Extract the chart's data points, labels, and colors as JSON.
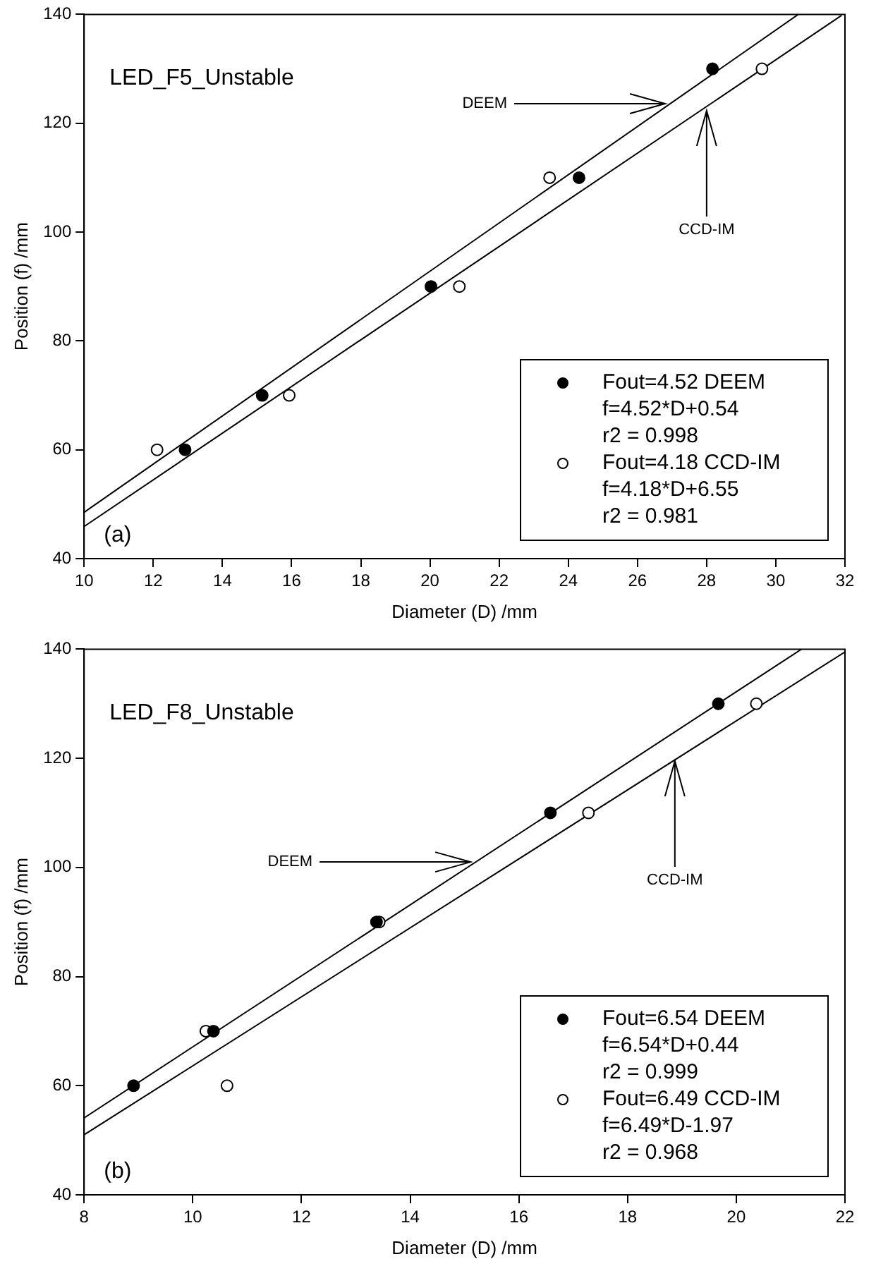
{
  "chart_data": [
    {
      "type": "scatter",
      "title": "LED_F5_Unstable",
      "xlabel": "Diameter (D) /mm",
      "ylabel": "Position (f) /mm",
      "xlim": [
        10,
        32
      ],
      "xticks": [
        10,
        12,
        14,
        16,
        18,
        20,
        22,
        24,
        26,
        28,
        30,
        32
      ],
      "ylim": [
        40,
        140
      ],
      "yticks": [
        40,
        60,
        80,
        100,
        120,
        140
      ],
      "marker": "circle",
      "legend": "bottom right",
      "annotations": [
        "(a)",
        {
          "text": "DEEM",
          "x": 26.8,
          "y": 123.6
        },
        {
          "text": "CCD-IM",
          "x": 28.0,
          "y": 122.3
        },
        "f=4.52*D+0.54",
        "r2 = 0.998",
        "f=4.18*D+6.55",
        "r2 = 0.981"
      ],
      "series": [
        {
          "name": "Fout=4.52 DEEM",
          "color": "#000000",
          "x": [
            12.92,
            15.15,
            20.03,
            24.31,
            28.17
          ],
          "values": [
            60,
            70,
            90,
            110,
            130
          ]
        },
        {
          "name": "Fout=4.18 CCD-IM",
          "color": "#ffffff",
          "x": [
            12.11,
            15.93,
            20.85,
            23.46,
            29.6
          ],
          "values": [
            60,
            70,
            90,
            110,
            130
          ]
        },
        {
          "type": "line",
          "marker": "none",
          "color": "#000000",
          "x": [
            10,
            30.65
          ],
          "values": [
            48.5,
            140
          ]
        },
        {
          "type": "line",
          "marker": "none",
          "color": "#000000",
          "x": [
            10,
            31.9
          ],
          "values": [
            45.9,
            139.8
          ]
        }
      ]
    },
    {
      "type": "scatter",
      "title": "LED_F8_Unstable",
      "xlabel": "Diameter (D) /mm",
      "ylabel": "Position (f) /mm",
      "xlim": [
        8,
        22
      ],
      "xticks": [
        8,
        10,
        12,
        14,
        16,
        18,
        20,
        22
      ],
      "ylim": [
        40,
        140
      ],
      "yticks": [
        40,
        60,
        80,
        100,
        120,
        140
      ],
      "marker": "circle",
      "legend": "bottom right",
      "annotations": [
        "(b)",
        {
          "text": "DEEM",
          "x": 15.11,
          "y": 101.0
        },
        {
          "text": "CCD-IM",
          "x": 18.87,
          "y": 119.5
        },
        "f=6.54*D+0.44",
        "r2 = 0.999",
        "f=6.49*D-1.97",
        "r2 = 0.968"
      ],
      "series": [
        {
          "name": "Fout=6.54 DEEM",
          "color": "#000000",
          "x": [
            8.91,
            10.38,
            13.38,
            16.58,
            19.67
          ],
          "values": [
            60,
            70,
            90,
            110,
            130
          ]
        },
        {
          "name": "Fout=6.49 CCD-IM",
          "color": "#ffffff",
          "x": [
            10.24,
            13.43,
            10.63,
            17.28,
            20.37
          ],
          "values": [
            70,
            90,
            60,
            110,
            130
          ]
        },
        {
          "type": "line",
          "marker": "none",
          "color": "#000000",
          "x": [
            8,
            21.2
          ],
          "values": [
            54.1,
            140
          ]
        },
        {
          "type": "line",
          "marker": "none",
          "color": "#000000",
          "x": [
            8,
            22
          ],
          "values": [
            51.0,
            139.5
          ]
        }
      ]
    }
  ]
}
